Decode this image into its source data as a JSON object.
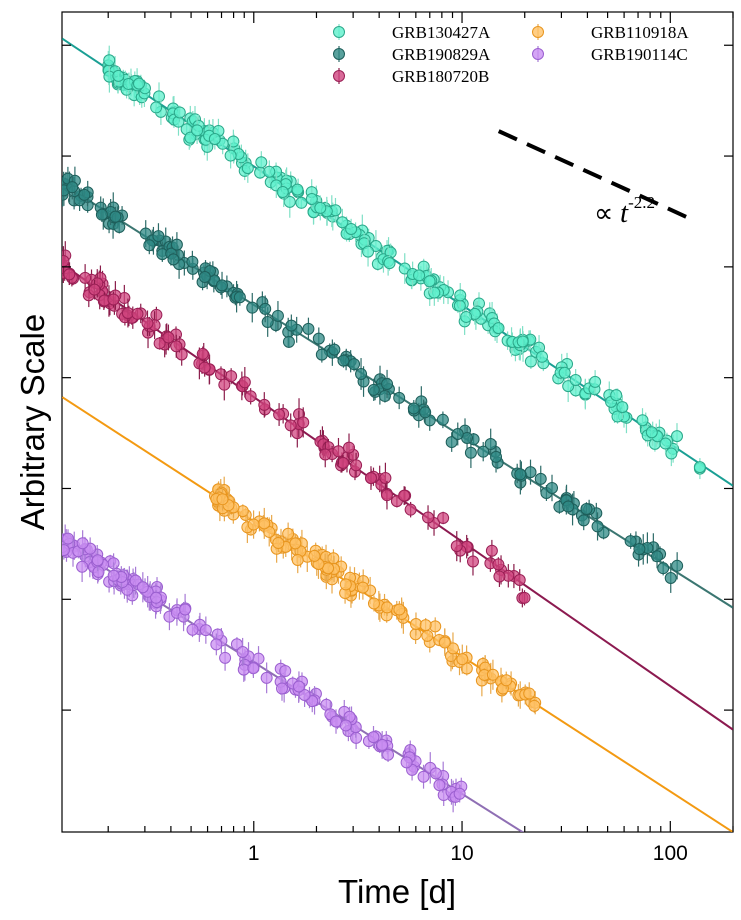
{
  "chart_data": {
    "type": "scatter",
    "title": "",
    "xlabel": "Time [d]",
    "ylabel": "Arbitrary Scale",
    "x_scale": "log",
    "xlim": [
      0.12,
      200
    ],
    "ylim": [
      -14.2,
      0.6
    ],
    "y_ticks": [
      -12,
      -10,
      -8,
      -6,
      -4,
      -2,
      0
    ],
    "x_tick_labels": [
      {
        "value": 1,
        "label": "1"
      },
      {
        "value": 10,
        "label": "10"
      },
      {
        "value": 100,
        "label": "100"
      }
    ],
    "legend_position": "top-right",
    "slope_annotation": {
      "text_prefix": "∝ ",
      "base": "t",
      "exponent": "-2.2",
      "slope": -2.2,
      "x_start": 15,
      "x_end": 130
    },
    "series": [
      {
        "name": "GRB130427A",
        "color": "#5ef0cc",
        "edge": "#2aa88a",
        "err": "#7fe0c6",
        "line_color": "#1a9f94",
        "t_start": 0.2,
        "t_end": 140,
        "n": 230,
        "fit_log_x": [
          -0.92,
          2.3
        ],
        "fit_y": [
          0.12,
          -7.95
        ]
      },
      {
        "name": "GRB190829A",
        "color": "#2f8a85",
        "edge": "#1d5e5a",
        "err": "#2d6b68",
        "line_color": "#3b7671",
        "t_start": 0.12,
        "t_end": 110,
        "n": 150,
        "fit_log_x": [
          -0.92,
          2.3
        ],
        "fit_y": [
          -2.5,
          -10.15
        ]
      },
      {
        "name": "GRB180720B",
        "color": "#d0457f",
        "edge": "#9a1f55",
        "err": "#8a1c4a",
        "line_color": "#8c1a50",
        "t_start": 0.12,
        "t_end": 20,
        "n": 120,
        "fit_log_x": [
          -0.92,
          2.3
        ],
        "fit_y": [
          -3.95,
          -12.35
        ]
      },
      {
        "name": "GRB110918A",
        "color": "#ffc266",
        "edge": "#e8951e",
        "err": "#e8a84a",
        "line_color": "#f39a12",
        "t_start": 0.65,
        "t_end": 24,
        "n": 140,
        "fit_log_x": [
          -0.92,
          2.3
        ],
        "fit_y": [
          -6.35,
          -14.2
        ]
      },
      {
        "name": "GRB190114C",
        "color": "#c98ef2",
        "edge": "#9b5fd0",
        "err": "#a77ad6",
        "line_color": "#8f6fb4",
        "t_start": 0.12,
        "t_end": 10,
        "n": 150,
        "fit_log_x": [
          -0.92,
          2.3
        ],
        "fit_y": [
          -8.95,
          -16.6
        ]
      }
    ]
  }
}
